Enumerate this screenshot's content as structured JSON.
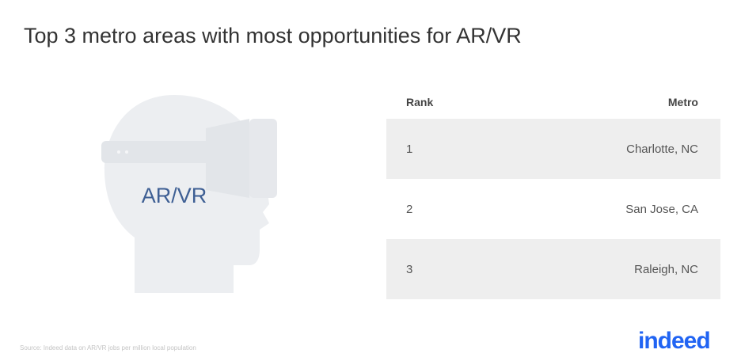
{
  "title": "Top 3 metro areas with most opportunities for AR/VR",
  "illustration": {
    "label": "AR/VR"
  },
  "table": {
    "header": [
      "Rank",
      "Metro"
    ],
    "rows": [
      [
        1,
        "Charlotte, NC"
      ],
      [
        2,
        "San Jose, CA"
      ],
      [
        3,
        "Raleigh, NC"
      ]
    ]
  },
  "footer": {
    "source": "Source: Indeed data on AR/VR jobs per million local population",
    "logo": "indeed"
  }
}
